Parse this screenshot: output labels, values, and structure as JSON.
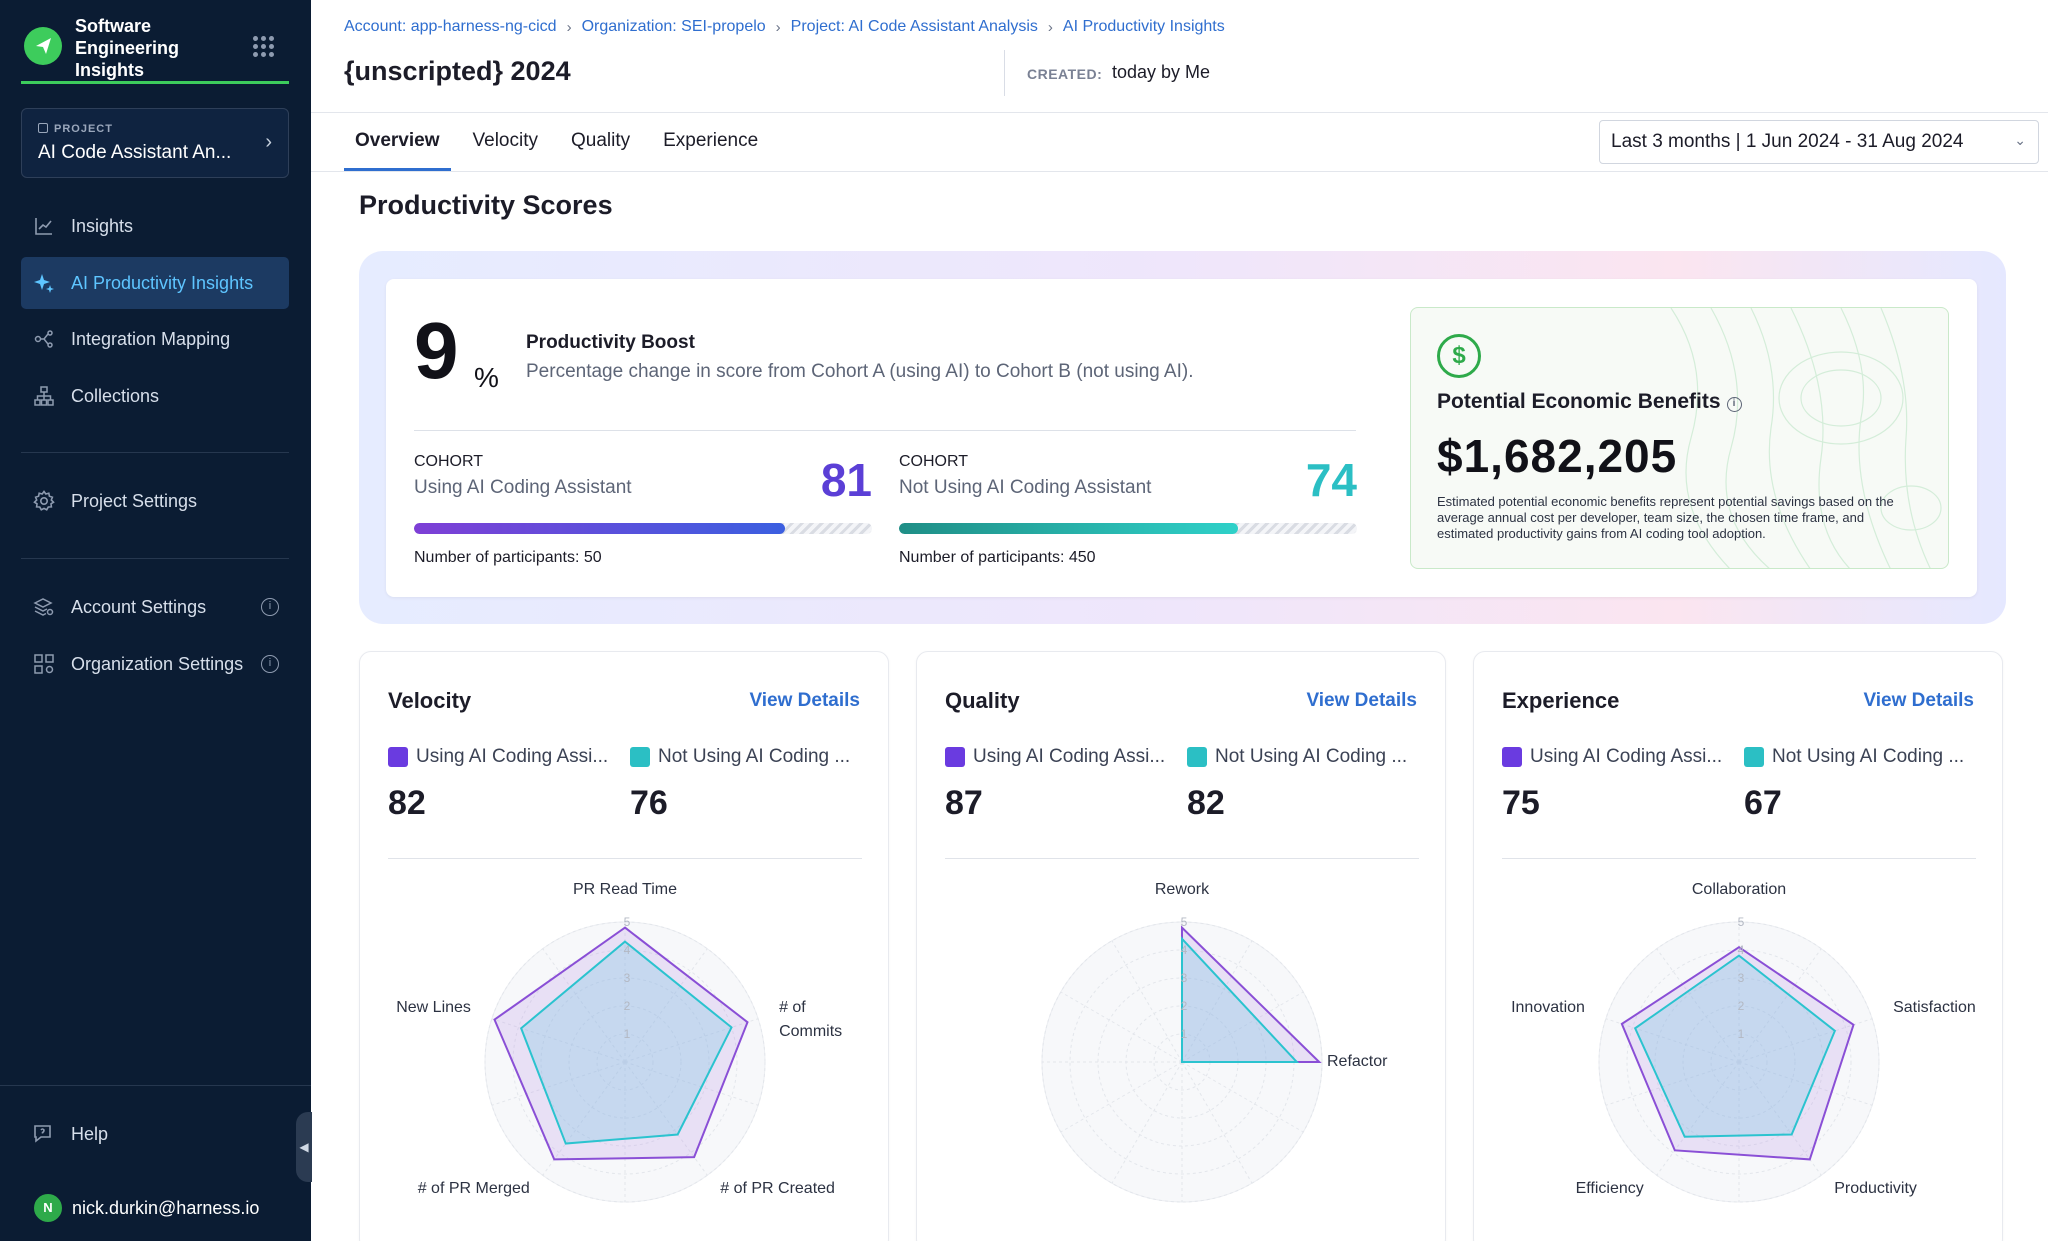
{
  "sidebar": {
    "brand": "Software Engineering Insights",
    "project_tag": "PROJECT",
    "project_name": "AI Code Assistant An...",
    "items": [
      {
        "label": "Insights"
      },
      {
        "label": "AI Productivity Insights"
      },
      {
        "label": "Integration Mapping"
      },
      {
        "label": "Collections"
      },
      {
        "label": "Project Settings"
      },
      {
        "label": "Account Settings"
      },
      {
        "label": "Organization Settings"
      }
    ],
    "help": "Help",
    "user_initial": "N",
    "user_email": "nick.durkin@harness.io"
  },
  "header": {
    "breadcrumbs": [
      "Account: app-harness-ng-cicd",
      "Organization: SEI-propelo",
      "Project: AI Code Assistant Analysis",
      "AI Productivity Insights"
    ],
    "title": "{unscripted} 2024",
    "created_label": "CREATED:",
    "created_value": "today by Me",
    "tabs": [
      "Overview",
      "Velocity",
      "Quality",
      "Experience"
    ],
    "active_tab": "Overview",
    "date_range": "Last 3 months | 1 Jun 2024 - 31 Aug 2024"
  },
  "main": {
    "section_title": "Productivity Scores",
    "boost": {
      "value": "9",
      "unit": "%",
      "title": "Productivity Boost",
      "description": "Percentage change in score from Cohort A (using AI) to Cohort B (not using AI)."
    },
    "cohort_a": {
      "label": "COHORT",
      "name": "Using AI Coding Assistant",
      "score": "81",
      "fill_fraction": 0.81,
      "participants": "Number of participants: 50",
      "color": "#5b3fd6"
    },
    "cohort_b": {
      "label": "COHORT",
      "name": "Not Using AI Coding Assistant",
      "score": "74",
      "fill_fraction": 0.74,
      "participants": "Number of participants: 450",
      "color": "#2bbfc4"
    },
    "benefit": {
      "icon": "dollar-icon",
      "title": "Potential Economic Benefits",
      "value": "$1,682,205",
      "description": "Estimated potential economic benefits represent potential savings based on the average annual cost per developer, team size, the chosen time frame, and estimated productivity gains from AI coding tool adoption."
    }
  },
  "panels": [
    {
      "title": "Velocity",
      "link": "View Details",
      "legend_a": "Using AI Coding Assi...",
      "legend_b": "Not Using AI Coding ...",
      "score_a": "82",
      "score_b": "76"
    },
    {
      "title": "Quality",
      "link": "View Details",
      "legend_a": "Using AI Coding Assi...",
      "legend_b": "Not Using AI Coding ...",
      "score_a": "87",
      "score_b": "82"
    },
    {
      "title": "Experience",
      "link": "View Details",
      "legend_a": "Using AI Coding Assi...",
      "legend_b": "Not Using AI Coding ...",
      "score_a": "75",
      "score_b": "67"
    }
  ],
  "colors": {
    "cohort_a": "#7e3fd6",
    "cohort_b": "#2bbfc4",
    "accent": "#2f6ecf",
    "sidebar_bg": "#0b1c33",
    "brand_green": "#3dcc5c"
  },
  "chart_data": [
    {
      "type": "radar",
      "title": "Velocity",
      "categories": [
        "PR Read Time",
        "# of Commits",
        "# of PR Created",
        "# of PR Merged",
        "New Lines"
      ],
      "rlim": [
        0,
        5
      ],
      "ticks": [
        "1",
        "2",
        "3",
        "4",
        "5"
      ],
      "series": [
        {
          "name": "Using AI Coding Assi...",
          "values": [
            4.8,
            4.6,
            4.2,
            4.3,
            4.9
          ]
        },
        {
          "name": "Not Using AI Coding ...",
          "values": [
            4.3,
            4.0,
            3.2,
            3.6,
            3.9
          ]
        }
      ]
    },
    {
      "type": "radar",
      "title": "Quality",
      "categories": [
        "Rework",
        "Refactor"
      ],
      "rlim": [
        0,
        5
      ],
      "ticks": [
        "1",
        "2",
        "3",
        "4",
        "5"
      ],
      "series": [
        {
          "name": "Using AI Coding Assi...",
          "values": [
            4.8,
            4.9
          ]
        },
        {
          "name": "Not Using AI Coding ...",
          "values": [
            4.4,
            4.1
          ]
        }
      ]
    },
    {
      "type": "radar",
      "title": "Experience",
      "categories": [
        "Collaboration",
        "Satisfaction",
        "Productivity",
        "Efficiency",
        "Innovation"
      ],
      "rlim": [
        0,
        5
      ],
      "ticks": [
        "1",
        "2",
        "3",
        "4",
        "5"
      ],
      "series": [
        {
          "name": "Using AI Coding Assi...",
          "values": [
            4.1,
            4.3,
            4.3,
            3.9,
            4.4
          ]
        },
        {
          "name": "Not Using AI Coding ...",
          "values": [
            3.8,
            3.6,
            3.2,
            3.3,
            3.9
          ]
        }
      ]
    }
  ]
}
